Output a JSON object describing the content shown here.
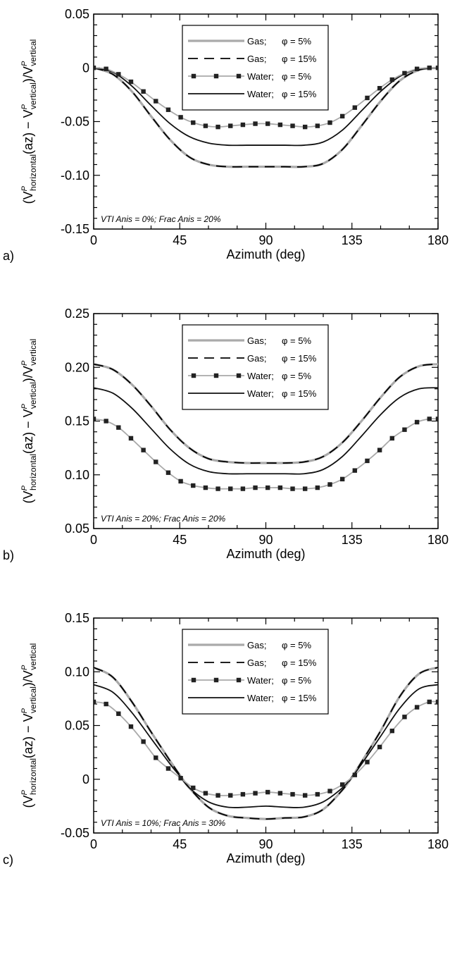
{
  "figure": {
    "y_label_parts": {
      "open": "(V",
      "sup": "P",
      "sub_h": "horizontal",
      "mid": "(az) − V",
      "sub_v1": "vertical",
      "close": ")/V",
      "sub_v2": "vertical"
    }
  },
  "colors": {
    "gas5": "#aaaaaa",
    "gas15": "#000000",
    "water5_line": "#aaaaaa",
    "water5_marker": "#222222",
    "water15": "#111111"
  },
  "legend_entries": [
    {
      "name": "Gas;",
      "phi": "φ = 5%"
    },
    {
      "name": "Gas;",
      "phi": "φ = 15%"
    },
    {
      "name": "Water;",
      "phi": "φ = 5%"
    },
    {
      "name": "Water;",
      "phi": "φ = 15%"
    }
  ],
  "chart_data": [
    {
      "type": "line",
      "panel_label": "a)",
      "xlabel": "Azimuth (deg)",
      "annotation": "VTI Anis = 0%; Frac Anis = 20%",
      "xlim": [
        0,
        180
      ],
      "ylim": [
        -0.15,
        0.05
      ],
      "xticks": [
        0,
        45,
        90,
        135,
        180
      ],
      "xtick_labels": [
        "0",
        "45",
        "90",
        "135",
        "180"
      ],
      "yticks": [
        -0.15,
        -0.1,
        -0.05,
        0,
        0.05
      ],
      "ytick_labels": [
        "-0.15",
        "-0.10",
        "-0.05",
        "0",
        "0.05"
      ],
      "legend_position": "top-right",
      "series": [
        {
          "name": "Gas; φ = 5%",
          "style": "gas5",
          "x": [
            0,
            10,
            20,
            30,
            40,
            50,
            60,
            70,
            80,
            90,
            100,
            110,
            120,
            130,
            140,
            150,
            160,
            170,
            180
          ],
          "y": [
            0,
            -0.006,
            -0.022,
            -0.045,
            -0.067,
            -0.083,
            -0.09,
            -0.092,
            -0.092,
            -0.092,
            -0.092,
            -0.092,
            -0.089,
            -0.076,
            -0.054,
            -0.031,
            -0.012,
            -0.002,
            0
          ]
        },
        {
          "name": "Gas; φ = 15%",
          "style": "gas15",
          "x": [
            0,
            10,
            20,
            30,
            40,
            50,
            60,
            70,
            80,
            90,
            100,
            110,
            120,
            130,
            140,
            150,
            160,
            170,
            180
          ],
          "y": [
            0,
            -0.006,
            -0.022,
            -0.045,
            -0.067,
            -0.083,
            -0.09,
            -0.092,
            -0.092,
            -0.092,
            -0.092,
            -0.092,
            -0.089,
            -0.076,
            -0.054,
            -0.031,
            -0.012,
            -0.002,
            0
          ]
        },
        {
          "name": "Water; φ = 5%",
          "style": "water5",
          "x": [
            0,
            6.5,
            13,
            19.5,
            26,
            32.5,
            39,
            45.5,
            52,
            58.5,
            65,
            71.5,
            78,
            84.5,
            91,
            97.5,
            104,
            110.5,
            117,
            123.5,
            130,
            136.5,
            143,
            149.5,
            156,
            162.5,
            169,
            175.5,
            180
          ],
          "y": [
            0,
            -0.001,
            -0.006,
            -0.013,
            -0.022,
            -0.031,
            -0.039,
            -0.046,
            -0.051,
            -0.054,
            -0.055,
            -0.054,
            -0.053,
            -0.052,
            -0.052,
            -0.053,
            -0.054,
            -0.055,
            -0.054,
            -0.051,
            -0.045,
            -0.037,
            -0.028,
            -0.019,
            -0.011,
            -0.005,
            -0.001,
            0,
            0
          ]
        },
        {
          "name": "Water; φ = 15%",
          "style": "water15",
          "x": [
            0,
            10,
            20,
            30,
            40,
            50,
            60,
            70,
            80,
            90,
            100,
            110,
            120,
            130,
            140,
            150,
            160,
            170,
            180
          ],
          "y": [
            0,
            -0.004,
            -0.017,
            -0.035,
            -0.052,
            -0.064,
            -0.07,
            -0.072,
            -0.072,
            -0.072,
            -0.072,
            -0.072,
            -0.069,
            -0.058,
            -0.04,
            -0.022,
            -0.008,
            -0.001,
            0
          ]
        }
      ]
    },
    {
      "type": "line",
      "panel_label": "b)",
      "xlabel": "Azimuth (deg)",
      "annotation": "VTI Anis = 20%; Frac Anis = 20%",
      "xlim": [
        0,
        180
      ],
      "ylim": [
        0.05,
        0.25
      ],
      "xticks": [
        0,
        45,
        90,
        135,
        180
      ],
      "xtick_labels": [
        "0",
        "45",
        "90",
        "135",
        "180"
      ],
      "yticks": [
        0.05,
        0.1,
        0.15,
        0.2,
        0.25
      ],
      "ytick_labels": [
        "0.05",
        "0.10",
        "0.15",
        "0.20",
        "0.25"
      ],
      "legend_position": "top-right",
      "series": [
        {
          "name": "Gas; φ = 5%",
          "style": "gas5",
          "x": [
            0,
            10,
            20,
            30,
            40,
            50,
            60,
            70,
            80,
            90,
            100,
            110,
            120,
            130,
            140,
            150,
            160,
            170,
            180
          ],
          "y": [
            0.203,
            0.198,
            0.184,
            0.164,
            0.142,
            0.125,
            0.115,
            0.112,
            0.111,
            0.111,
            0.111,
            0.112,
            0.117,
            0.13,
            0.15,
            0.172,
            0.191,
            0.201,
            0.203
          ]
        },
        {
          "name": "Gas; φ = 15%",
          "style": "gas15",
          "x": [
            0,
            10,
            20,
            30,
            40,
            50,
            60,
            70,
            80,
            90,
            100,
            110,
            120,
            130,
            140,
            150,
            160,
            170,
            180
          ],
          "y": [
            0.203,
            0.198,
            0.184,
            0.164,
            0.142,
            0.125,
            0.115,
            0.112,
            0.111,
            0.111,
            0.111,
            0.112,
            0.117,
            0.13,
            0.15,
            0.172,
            0.191,
            0.201,
            0.203
          ]
        },
        {
          "name": "Water; φ = 5%",
          "style": "water5",
          "x": [
            0,
            6.5,
            13,
            19.5,
            26,
            32.5,
            39,
            45.5,
            52,
            58.5,
            65,
            71.5,
            78,
            84.5,
            91,
            97.5,
            104,
            110.5,
            117,
            123.5,
            130,
            136.5,
            143,
            149.5,
            156,
            162.5,
            169,
            175.5,
            180
          ],
          "y": [
            0.152,
            0.15,
            0.144,
            0.134,
            0.123,
            0.112,
            0.102,
            0.094,
            0.09,
            0.088,
            0.087,
            0.087,
            0.087,
            0.088,
            0.088,
            0.088,
            0.087,
            0.087,
            0.088,
            0.091,
            0.096,
            0.104,
            0.113,
            0.123,
            0.134,
            0.142,
            0.149,
            0.152,
            0.152
          ]
        },
        {
          "name": "Water; φ = 15%",
          "style": "water15",
          "x": [
            0,
            10,
            20,
            30,
            40,
            50,
            60,
            70,
            80,
            90,
            100,
            110,
            120,
            130,
            140,
            150,
            160,
            170,
            180
          ],
          "y": [
            0.181,
            0.176,
            0.162,
            0.143,
            0.124,
            0.11,
            0.103,
            0.101,
            0.101,
            0.101,
            0.101,
            0.101,
            0.105,
            0.117,
            0.136,
            0.156,
            0.172,
            0.18,
            0.181
          ]
        }
      ]
    },
    {
      "type": "line",
      "panel_label": "c)",
      "xlabel": "Azimuth (deg)",
      "annotation": "VTI Anis = 10%; Frac Anis = 30%",
      "xlim": [
        0,
        180
      ],
      "ylim": [
        -0.05,
        0.15
      ],
      "xticks": [
        0,
        45,
        90,
        135,
        180
      ],
      "xtick_labels": [
        "0",
        "45",
        "90",
        "135",
        "180"
      ],
      "yticks": [
        -0.05,
        0,
        0.05,
        0.1,
        0.15
      ],
      "ytick_labels": [
        "-0.05",
        "0",
        "0.05",
        "0.10",
        "0.15"
      ],
      "legend_position": "top-right",
      "series": [
        {
          "name": "Gas; φ = 5%",
          "style": "gas5",
          "x": [
            0,
            10,
            20,
            30,
            40,
            45,
            50,
            60,
            70,
            80,
            90,
            100,
            110,
            120,
            130,
            135,
            140,
            150,
            160,
            170,
            180
          ],
          "y": [
            0.104,
            0.095,
            0.072,
            0.044,
            0.017,
            0.004,
            -0.008,
            -0.026,
            -0.034,
            -0.036,
            -0.037,
            -0.036,
            -0.035,
            -0.028,
            -0.01,
            0.002,
            0.016,
            0.045,
            0.077,
            0.098,
            0.104
          ]
        },
        {
          "name": "Gas; φ = 15%",
          "style": "gas15",
          "x": [
            0,
            10,
            20,
            30,
            40,
            45,
            50,
            60,
            70,
            80,
            90,
            100,
            110,
            120,
            130,
            135,
            140,
            150,
            160,
            170,
            180
          ],
          "y": [
            0.104,
            0.095,
            0.072,
            0.044,
            0.017,
            0.004,
            -0.008,
            -0.026,
            -0.034,
            -0.036,
            -0.037,
            -0.036,
            -0.035,
            -0.028,
            -0.01,
            0.002,
            0.016,
            0.045,
            0.077,
            0.098,
            0.104
          ]
        },
        {
          "name": "Water; φ = 5%",
          "style": "water5",
          "x": [
            0,
            6.5,
            13,
            19.5,
            26,
            32.5,
            39,
            45.5,
            52,
            58.5,
            65,
            71.5,
            78,
            84.5,
            91,
            97.5,
            104,
            110.5,
            117,
            123.5,
            130,
            136.5,
            143,
            149.5,
            156,
            162.5,
            169,
            175.5,
            180
          ],
          "y": [
            0.072,
            0.07,
            0.061,
            0.049,
            0.035,
            0.02,
            0.01,
            0.001,
            -0.008,
            -0.013,
            -0.015,
            -0.015,
            -0.014,
            -0.013,
            -0.012,
            -0.013,
            -0.014,
            -0.015,
            -0.014,
            -0.011,
            -0.005,
            0.004,
            0.016,
            0.03,
            0.045,
            0.058,
            0.067,
            0.072,
            0.072
          ]
        },
        {
          "name": "Water; φ = 15%",
          "style": "water15",
          "x": [
            0,
            10,
            20,
            30,
            40,
            45,
            50,
            60,
            70,
            80,
            90,
            100,
            110,
            120,
            130,
            135,
            140,
            150,
            160,
            170,
            180
          ],
          "y": [
            0.088,
            0.081,
            0.062,
            0.038,
            0.014,
            0.003,
            -0.008,
            -0.021,
            -0.026,
            -0.026,
            -0.025,
            -0.026,
            -0.026,
            -0.021,
            -0.008,
            0.002,
            0.014,
            0.04,
            0.066,
            0.084,
            0.088
          ]
        }
      ]
    }
  ]
}
